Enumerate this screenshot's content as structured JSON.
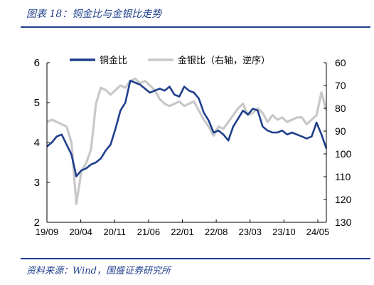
{
  "figure": {
    "title": "图表 18：铜金比与金银比走势",
    "source": "资料来源：Wind，国盛证券研究所"
  },
  "chart_data": {
    "type": "line",
    "x_ticks": [
      "19/09",
      "20/04",
      "20/11",
      "21/06",
      "22/01",
      "22/08",
      "23/03",
      "23/10",
      "24/05"
    ],
    "x_range": [
      "2019-09",
      "2024-06"
    ],
    "y_left": {
      "range": [
        2,
        6
      ],
      "ticks": [
        "2",
        "3",
        "4",
        "5",
        "6"
      ]
    },
    "y_right": {
      "range": [
        60,
        130
      ],
      "reversed": true,
      "ticks": [
        "60",
        "70",
        "80",
        "90",
        "100",
        "110",
        "120",
        "130"
      ]
    },
    "legend_position": "top",
    "grid": false,
    "series": [
      {
        "name": "铜金比",
        "axis": "left",
        "color": "#1f3f8c",
        "x": [
          "2019-09",
          "2019-10",
          "2019-11",
          "2019-12",
          "2020-01",
          "2020-02",
          "2020-03",
          "2020-04",
          "2020-05",
          "2020-06",
          "2020-07",
          "2020-08",
          "2020-09",
          "2020-10",
          "2020-11",
          "2020-12",
          "2021-01",
          "2021-02",
          "2021-03",
          "2021-04",
          "2021-05",
          "2021-06",
          "2021-07",
          "2021-08",
          "2021-09",
          "2021-10",
          "2021-11",
          "2021-12",
          "2022-01",
          "2022-02",
          "2022-03",
          "2022-04",
          "2022-05",
          "2022-06",
          "2022-07",
          "2022-08",
          "2022-09",
          "2022-10",
          "2022-11",
          "2022-12",
          "2023-01",
          "2023-02",
          "2023-03",
          "2023-04",
          "2023-05",
          "2023-06",
          "2023-07",
          "2023-08",
          "2023-09",
          "2023-10",
          "2023-11",
          "2023-12",
          "2024-01",
          "2024-02",
          "2024-03",
          "2024-04",
          "2024-05",
          "2024-06"
        ],
        "values": [
          3.9,
          4.0,
          4.15,
          4.2,
          3.95,
          3.7,
          3.15,
          3.3,
          3.35,
          3.45,
          3.5,
          3.6,
          3.8,
          3.95,
          4.35,
          4.8,
          5.0,
          5.55,
          5.5,
          5.45,
          5.35,
          5.25,
          5.3,
          5.35,
          5.3,
          5.4,
          5.2,
          5.15,
          5.4,
          5.3,
          5.25,
          5.1,
          4.75,
          4.55,
          4.25,
          4.3,
          4.2,
          4.05,
          4.4,
          4.6,
          4.8,
          4.7,
          4.85,
          4.8,
          4.4,
          4.3,
          4.25,
          4.25,
          4.3,
          4.2,
          4.25,
          4.2,
          4.15,
          4.1,
          4.15,
          4.5,
          4.2,
          3.85
        ]
      },
      {
        "name": "金银比（右轴，逆序）",
        "axis": "right",
        "color": "#c8c8c8",
        "x": [
          "2019-09",
          "2019-10",
          "2019-11",
          "2019-12",
          "2020-01",
          "2020-02",
          "2020-03",
          "2020-04",
          "2020-05",
          "2020-06",
          "2020-07",
          "2020-08",
          "2020-09",
          "2020-10",
          "2020-11",
          "2020-12",
          "2021-01",
          "2021-02",
          "2021-03",
          "2021-04",
          "2021-05",
          "2021-06",
          "2021-07",
          "2021-08",
          "2021-09",
          "2021-10",
          "2021-11",
          "2021-12",
          "2022-01",
          "2022-02",
          "2022-03",
          "2022-04",
          "2022-05",
          "2022-06",
          "2022-07",
          "2022-08",
          "2022-09",
          "2022-10",
          "2022-11",
          "2022-12",
          "2023-01",
          "2023-02",
          "2023-03",
          "2023-04",
          "2023-05",
          "2023-06",
          "2023-07",
          "2023-08",
          "2023-09",
          "2023-10",
          "2023-11",
          "2023-12",
          "2024-01",
          "2024-02",
          "2024-03",
          "2024-04",
          "2024-05",
          "2024-06"
        ],
        "values": [
          86,
          85,
          86,
          87,
          88,
          95,
          122,
          108,
          104,
          98,
          78,
          71,
          72,
          74,
          72,
          70,
          71,
          68,
          67,
          69,
          68,
          70,
          72,
          76,
          78,
          79,
          78,
          77,
          79,
          78,
          77,
          81,
          85,
          88,
          92,
          88,
          89,
          86,
          83,
          80,
          78,
          83,
          82,
          80,
          82,
          86,
          83,
          85,
          84,
          86,
          85,
          84,
          84,
          87,
          85,
          83,
          73,
          81
        ]
      }
    ]
  }
}
